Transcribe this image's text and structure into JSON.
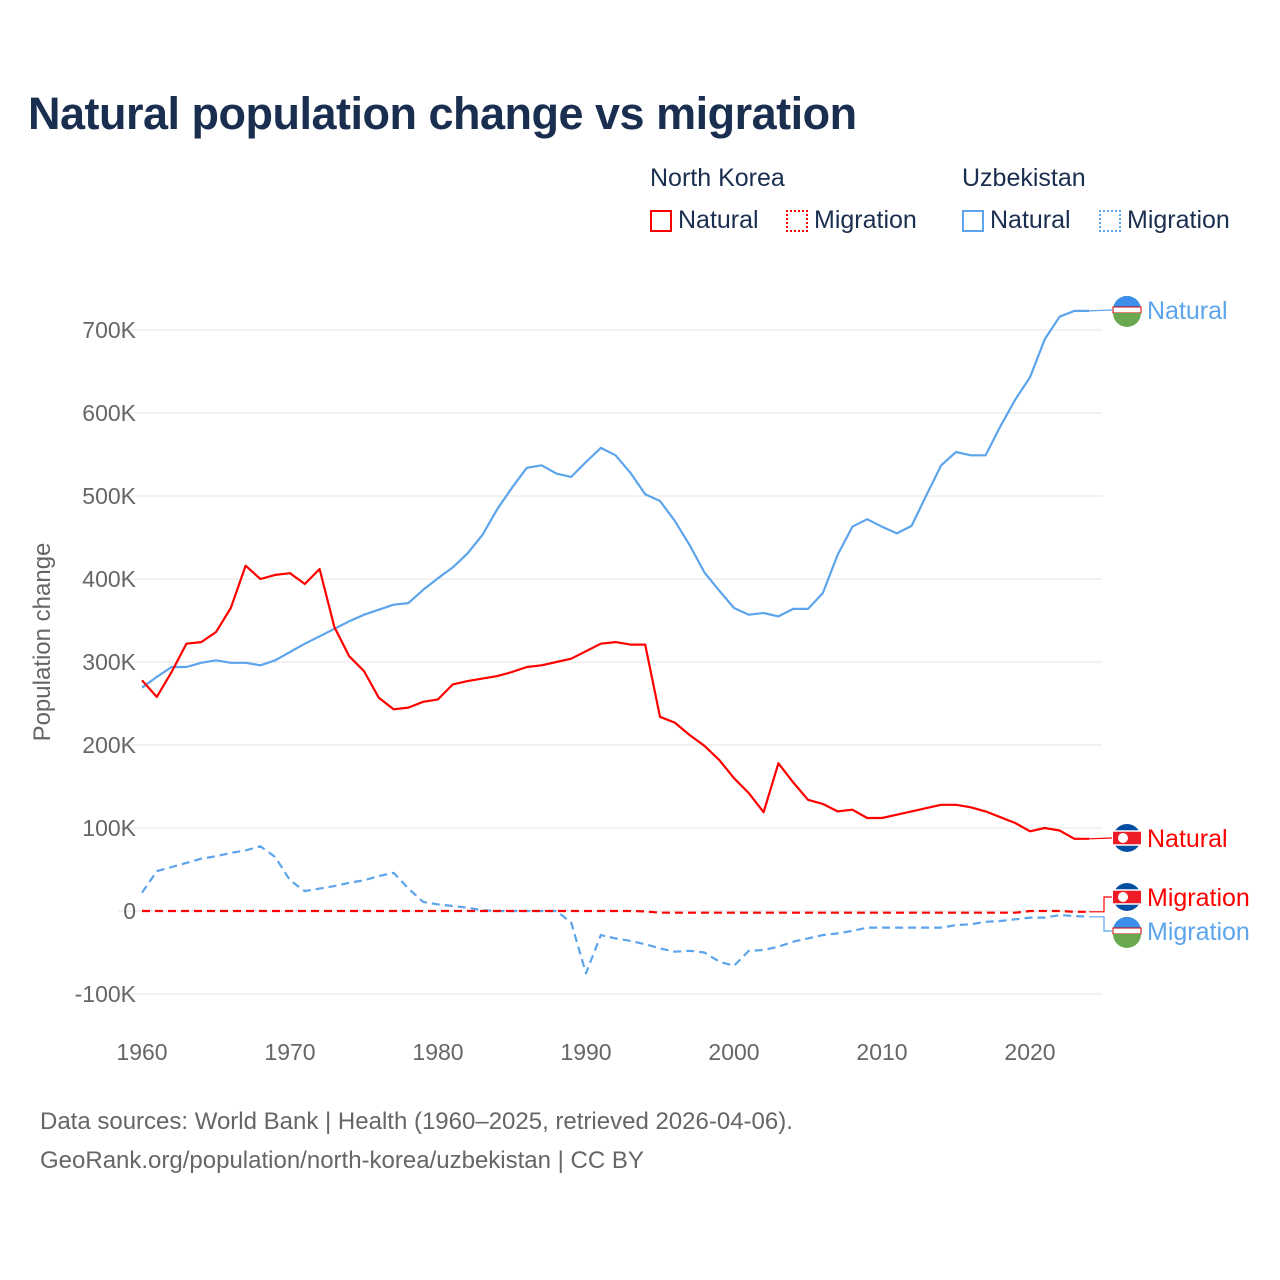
{
  "colors": {
    "north_korea": "#ff0000",
    "uzbekistan": "#5ca4eb",
    "title": "#1a2e4f",
    "grid": "#e6e6e6"
  },
  "chart_data": {
    "type": "line",
    "title": "Natural population change vs migration",
    "xlabel": "",
    "ylabel": "Population change",
    "xlim": [
      1960,
      2025
    ],
    "ylim": [
      -110000,
      760000
    ],
    "x_ticks": [
      "1960",
      "1970",
      "1980",
      "1990",
      "2000",
      "2010",
      "2020"
    ],
    "x_tick_values": [
      1960,
      1970,
      1980,
      1990,
      2000,
      2010,
      2020
    ],
    "y_ticks": [
      "-100K",
      "0",
      "100K",
      "200K",
      "300K",
      "400K",
      "500K",
      "600K",
      "700K"
    ],
    "y_tick_values": [
      -100000,
      0,
      100000,
      200000,
      300000,
      400000,
      500000,
      600000,
      700000
    ],
    "grid": true,
    "legend": {
      "placement": "top-right",
      "groups": [
        {
          "name": "North Korea",
          "items": [
            "Natural",
            "Migration"
          ]
        },
        {
          "name": "Uzbekistan",
          "items": [
            "Natural",
            "Migration"
          ]
        }
      ]
    },
    "x": [
      1960,
      1961,
      1962,
      1963,
      1964,
      1965,
      1966,
      1967,
      1968,
      1969,
      1970,
      1971,
      1972,
      1973,
      1974,
      1975,
      1976,
      1977,
      1978,
      1979,
      1980,
      1981,
      1982,
      1983,
      1984,
      1985,
      1986,
      1987,
      1988,
      1989,
      1990,
      1991,
      1992,
      1993,
      1994,
      1995,
      1996,
      1997,
      1998,
      1999,
      2000,
      2001,
      2002,
      2003,
      2004,
      2005,
      2006,
      2007,
      2008,
      2009,
      2010,
      2011,
      2012,
      2013,
      2014,
      2015,
      2016,
      2017,
      2018,
      2019,
      2020,
      2021,
      2022,
      2023,
      2024
    ],
    "series": [
      {
        "name": "North Korea Natural",
        "country": "North Korea",
        "kind": "Natural",
        "end_label": "Natural",
        "color": "#ff0000",
        "dash": false,
        "values": [
          278,
          258,
          288,
          322,
          324,
          336,
          365,
          416,
          400,
          405,
          407,
          394,
          412,
          342,
          307,
          289,
          257,
          243,
          245,
          252,
          255,
          273,
          277,
          280,
          283,
          288,
          294,
          296,
          300,
          304,
          313,
          322,
          324,
          321,
          321,
          234,
          227,
          212,
          199,
          182,
          160,
          142,
          119,
          178,
          155,
          134,
          129,
          120,
          122,
          112,
          112,
          116,
          120,
          124,
          128,
          128,
          125,
          120,
          113,
          106,
          96,
          100,
          97,
          87,
          87
        ]
      },
      {
        "name": "North Korea Migration",
        "country": "North Korea",
        "kind": "Migration",
        "end_label": "Migration",
        "color": "#ff0000",
        "dash": true,
        "values": [
          0,
          0,
          0,
          0,
          0,
          0,
          0,
          0,
          0,
          0,
          0,
          0,
          0,
          0,
          0,
          0,
          0,
          0,
          0,
          0,
          0,
          0,
          0,
          0,
          0,
          0,
          0,
          0,
          0,
          0,
          0,
          0,
          0,
          0,
          -0.5,
          -2,
          -2,
          -2,
          -2,
          -2,
          -2,
          -2,
          -2,
          -2,
          -2,
          -2,
          -2,
          -2,
          -2,
          -2,
          -2,
          -2,
          -2,
          -2,
          -2,
          -2,
          -2,
          -2,
          -2,
          -2,
          0,
          0,
          0,
          -1,
          -1
        ]
      },
      {
        "name": "Uzbekistan Natural",
        "country": "Uzbekistan",
        "kind": "Natural",
        "end_label": "Natural",
        "color": "#5ca4eb",
        "dash": false,
        "values": [
          269,
          282,
          294,
          294,
          299,
          302,
          299,
          299,
          296,
          302,
          312,
          322,
          331,
          340,
          349,
          357,
          363,
          369,
          371,
          387,
          401,
          414,
          431,
          453,
          484,
          510,
          534,
          537,
          527,
          523,
          541,
          558,
          549,
          528,
          502,
          494,
          470,
          441,
          408,
          386,
          365,
          357,
          359,
          355,
          364,
          364,
          383,
          429,
          463,
          472,
          463,
          455,
          464,
          501,
          537,
          553,
          549,
          549,
          584,
          616,
          643,
          689,
          716,
          723,
          723
        ]
      },
      {
        "name": "Uzbekistan Migration",
        "country": "Uzbekistan",
        "kind": "Migration",
        "end_label": "Migration",
        "color": "#5ca4eb",
        "dash": true,
        "values": [
          22,
          48,
          53,
          58,
          63,
          66,
          70,
          73,
          78,
          65,
          37,
          24,
          27,
          30,
          34,
          37,
          42,
          46,
          27,
          11,
          8,
          6,
          4,
          1,
          0,
          0,
          0,
          0,
          0,
          -14,
          -75,
          -29,
          -33,
          -36,
          -40,
          -45,
          -49,
          -48,
          -50,
          -61,
          -66,
          -48,
          -47,
          -43,
          -37,
          -33,
          -29,
          -27,
          -24,
          -20,
          -20,
          -20,
          -20,
          -20,
          -20,
          -17,
          -16,
          -13,
          -12,
          -10,
          -8,
          -8,
          -5,
          -6,
          -7
        ]
      }
    ],
    "value_unit": "thousands"
  },
  "legend": {
    "nk": "North Korea",
    "uz": "Uzbekistan",
    "natural": "Natural",
    "migration": "Migration"
  },
  "footer": {
    "line1": "Data sources: World Bank | Health (1960–2025, retrieved 2026-04-06).",
    "line2": "GeoRank.org/population/north-korea/uzbekistan | CC BY"
  }
}
